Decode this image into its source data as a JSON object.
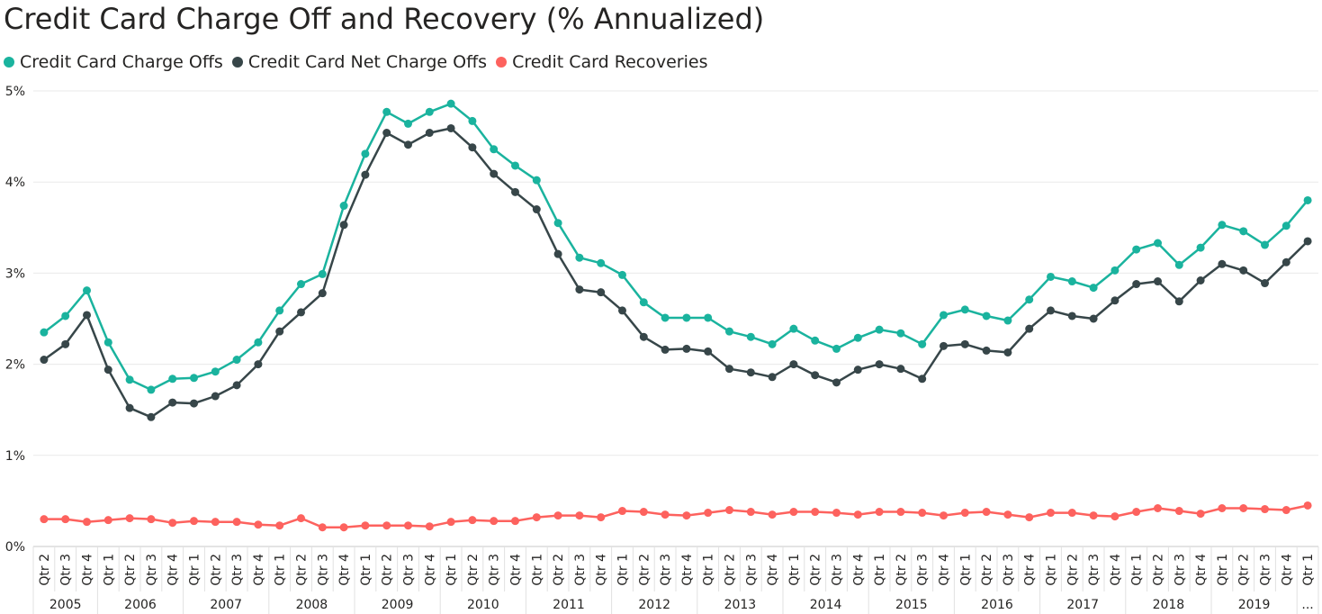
{
  "chart_data": {
    "type": "line",
    "title": "Credit Card Charge Off and Recovery (% Annualized)",
    "xlabel": "",
    "ylabel": "",
    "ylim": [
      0,
      5
    ],
    "y_ticks": [
      "0%",
      "1%",
      "2%",
      "3%",
      "4%",
      "5%"
    ],
    "grid": true,
    "legend_position": "top-left",
    "x": [
      "Qtr 2",
      "Qtr 3",
      "Qtr 4",
      "Qtr 1",
      "Qtr 2",
      "Qtr 3",
      "Qtr 4",
      "Qtr 1",
      "Qtr 2",
      "Qtr 3",
      "Qtr 4",
      "Qtr 1",
      "Qtr 2",
      "Qtr 3",
      "Qtr 4",
      "Qtr 1",
      "Qtr 2",
      "Qtr 3",
      "Qtr 4",
      "Qtr 1",
      "Qtr 2",
      "Qtr 3",
      "Qtr 4",
      "Qtr 1",
      "Qtr 2",
      "Qtr 3",
      "Qtr 4",
      "Qtr 1",
      "Qtr 2",
      "Qtr 3",
      "Qtr 4",
      "Qtr 1",
      "Qtr 2",
      "Qtr 3",
      "Qtr 4",
      "Qtr 1",
      "Qtr 2",
      "Qtr 3",
      "Qtr 4",
      "Qtr 1",
      "Qtr 2",
      "Qtr 3",
      "Qtr 4",
      "Qtr 1",
      "Qtr 2",
      "Qtr 3",
      "Qtr 4",
      "Qtr 1",
      "Qtr 2",
      "Qtr 3",
      "Qtr 4",
      "Qtr 1",
      "Qtr 2",
      "Qtr 3",
      "Qtr 4",
      "Qtr 1",
      "Qtr 2",
      "Qtr 3",
      "Qtr 4",
      "Qtr 1"
    ],
    "years": [
      {
        "label": "2005",
        "count": 3
      },
      {
        "label": "2006",
        "count": 4
      },
      {
        "label": "2007",
        "count": 4
      },
      {
        "label": "2008",
        "count": 4
      },
      {
        "label": "2009",
        "count": 4
      },
      {
        "label": "2010",
        "count": 4
      },
      {
        "label": "2011",
        "count": 4
      },
      {
        "label": "2012",
        "count": 4
      },
      {
        "label": "2013",
        "count": 4
      },
      {
        "label": "2014",
        "count": 4
      },
      {
        "label": "2015",
        "count": 4
      },
      {
        "label": "2016",
        "count": 4
      },
      {
        "label": "2017",
        "count": 4
      },
      {
        "label": "2018",
        "count": 4
      },
      {
        "label": "2019",
        "count": 4
      },
      {
        "label": "...",
        "count": 1
      }
    ],
    "series": [
      {
        "name": "Credit Card Charge Offs",
        "color": "#1ab39e",
        "values": [
          2.35,
          2.53,
          2.81,
          2.24,
          1.83,
          1.72,
          1.84,
          1.85,
          1.92,
          2.05,
          2.24,
          2.59,
          2.88,
          2.99,
          3.74,
          4.31,
          4.77,
          4.64,
          4.77,
          4.86,
          4.67,
          4.36,
          4.18,
          4.02,
          3.55,
          3.17,
          3.11,
          2.98,
          2.68,
          2.51,
          2.51,
          2.51,
          2.36,
          2.3,
          2.22,
          2.39,
          2.26,
          2.17,
          2.29,
          2.38,
          2.34,
          2.22,
          2.54,
          2.6,
          2.53,
          2.48,
          2.71,
          2.96,
          2.91,
          2.84,
          3.03,
          3.26,
          3.33,
          3.09,
          3.28,
          3.53,
          3.46,
          3.31,
          3.52,
          3.8
        ]
      },
      {
        "name": "Credit Card Net Charge Offs",
        "color": "#374649",
        "values": [
          2.05,
          2.22,
          2.54,
          1.94,
          1.52,
          1.42,
          1.58,
          1.57,
          1.65,
          1.77,
          2.0,
          2.36,
          2.57,
          2.78,
          3.53,
          4.08,
          4.54,
          4.41,
          4.54,
          4.59,
          4.38,
          4.09,
          3.89,
          3.7,
          3.21,
          2.82,
          2.79,
          2.59,
          2.3,
          2.16,
          2.17,
          2.14,
          1.95,
          1.91,
          1.86,
          2.0,
          1.88,
          1.8,
          1.94,
          2.0,
          1.95,
          1.84,
          2.2,
          2.22,
          2.15,
          2.13,
          2.39,
          2.59,
          2.53,
          2.5,
          2.7,
          2.88,
          2.91,
          2.69,
          2.92,
          3.1,
          3.03,
          2.89,
          3.12,
          3.35
        ]
      },
      {
        "name": "Credit Card Recoveries",
        "color": "#fd625e",
        "values": [
          0.3,
          0.3,
          0.27,
          0.29,
          0.31,
          0.3,
          0.26,
          0.28,
          0.27,
          0.27,
          0.24,
          0.23,
          0.31,
          0.21,
          0.21,
          0.23,
          0.23,
          0.23,
          0.22,
          0.27,
          0.29,
          0.28,
          0.28,
          0.32,
          0.34,
          0.34,
          0.32,
          0.39,
          0.38,
          0.35,
          0.34,
          0.37,
          0.4,
          0.38,
          0.35,
          0.38,
          0.38,
          0.37,
          0.35,
          0.38,
          0.38,
          0.37,
          0.34,
          0.37,
          0.38,
          0.35,
          0.32,
          0.37,
          0.37,
          0.34,
          0.33,
          0.38,
          0.42,
          0.39,
          0.36,
          0.42,
          0.42,
          0.41,
          0.4,
          0.45
        ]
      }
    ]
  }
}
